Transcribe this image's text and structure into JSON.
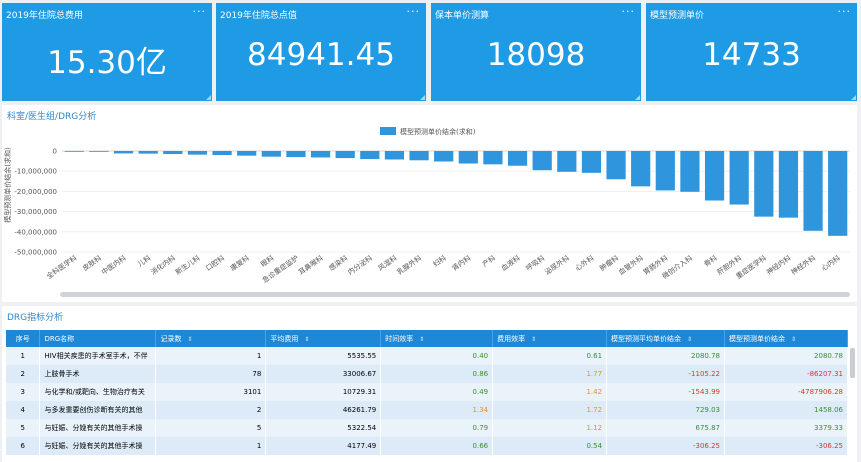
{
  "kpis": [
    {
      "title": "2019年住院总费用",
      "value": "15.30亿"
    },
    {
      "title": "2019年住院总点值",
      "value": "84941.45"
    },
    {
      "title": "保本单价测算",
      "value": "18098"
    },
    {
      "title": "模型预测单价",
      "value": "14733"
    }
  ],
  "more_glyph": "···",
  "chart_panel": {
    "title": "科室/医生组/DRG分析"
  },
  "chart_data": {
    "type": "bar",
    "legend": "模型预测单价结余(求和)",
    "ylabel": "模型预测单价结余(求和)",
    "ylim": [
      -50000000,
      0
    ],
    "yticks": [
      "0",
      "-10,000,000",
      "-20,000,000",
      "-30,000,000",
      "-40,000,000",
      "-50,000,000"
    ],
    "categories": [
      "全科医学科",
      "皮肤科",
      "中医内科",
      "儿科",
      "消化内科",
      "新生儿科",
      "口腔科",
      "康复科",
      "眼科",
      "急诊重症监护",
      "耳鼻喉科",
      "感染科",
      "内分泌科",
      "风湿科",
      "乳腺外科",
      "妇科",
      "肾内科",
      "产科",
      "血液科",
      "呼吸科",
      "泌尿外科",
      "心外科",
      "肿瘤科",
      "血管外科",
      "胃肠外科",
      "微创介入科",
      "骨科",
      "肝胆外科",
      "重症医学科",
      "神经内科",
      "神经外科",
      "心内科"
    ],
    "values": [
      -300000,
      -400000,
      -1200000,
      -1300000,
      -1500000,
      -1800000,
      -2000000,
      -2300000,
      -2800000,
      -3000000,
      -3200000,
      -3500000,
      -4000000,
      -4200000,
      -4600000,
      -5200000,
      -6200000,
      -6600000,
      -7300000,
      -9500000,
      -10300000,
      -10800000,
      -14000000,
      -17500000,
      -19500000,
      -20200000,
      -24500000,
      -26500000,
      -32500000,
      -33000000,
      -39500000,
      -42000000
    ],
    "legend_color": "#2f95dc"
  },
  "table_panel": {
    "title": "DRG指标分析"
  },
  "table": {
    "headers": [
      "序号",
      "DRG名称",
      "记录数",
      "平均费用",
      "时间效率",
      "费用效率",
      "模型预测平均单价结余",
      "模型预测单价结余"
    ],
    "rows": [
      [
        "1",
        "HIV相关疾患的手术室手术，不伴",
        "1",
        "5535.55",
        "0.40",
        "0.61",
        "2080.78",
        "2080.78"
      ],
      [
        "2",
        "上肢骨手术",
        "78",
        "33006.67",
        "0.86",
        "1.77",
        "-1105.22",
        "-86207.31"
      ],
      [
        "3",
        "与化学和/或靶向、生物治疗有关",
        "3101",
        "10729.31",
        "0.49",
        "1.42",
        "-1543.99",
        "-4787906.28"
      ],
      [
        "4",
        "与多发重要创伤诊断有关的其他",
        "2",
        "46261.79",
        "1.34",
        "1.72",
        "729.03",
        "1458.06"
      ],
      [
        "5",
        "与妊娠、分娩有关的其他手术操",
        "5",
        "5322.54",
        "0.79",
        "1.12",
        "675.87",
        "3379.33"
      ],
      [
        "6",
        "与妊娠、分娩有关的其他手术操",
        "1",
        "4177.49",
        "0.66",
        "0.54",
        "-306.25",
        "-306.25"
      ]
    ]
  }
}
